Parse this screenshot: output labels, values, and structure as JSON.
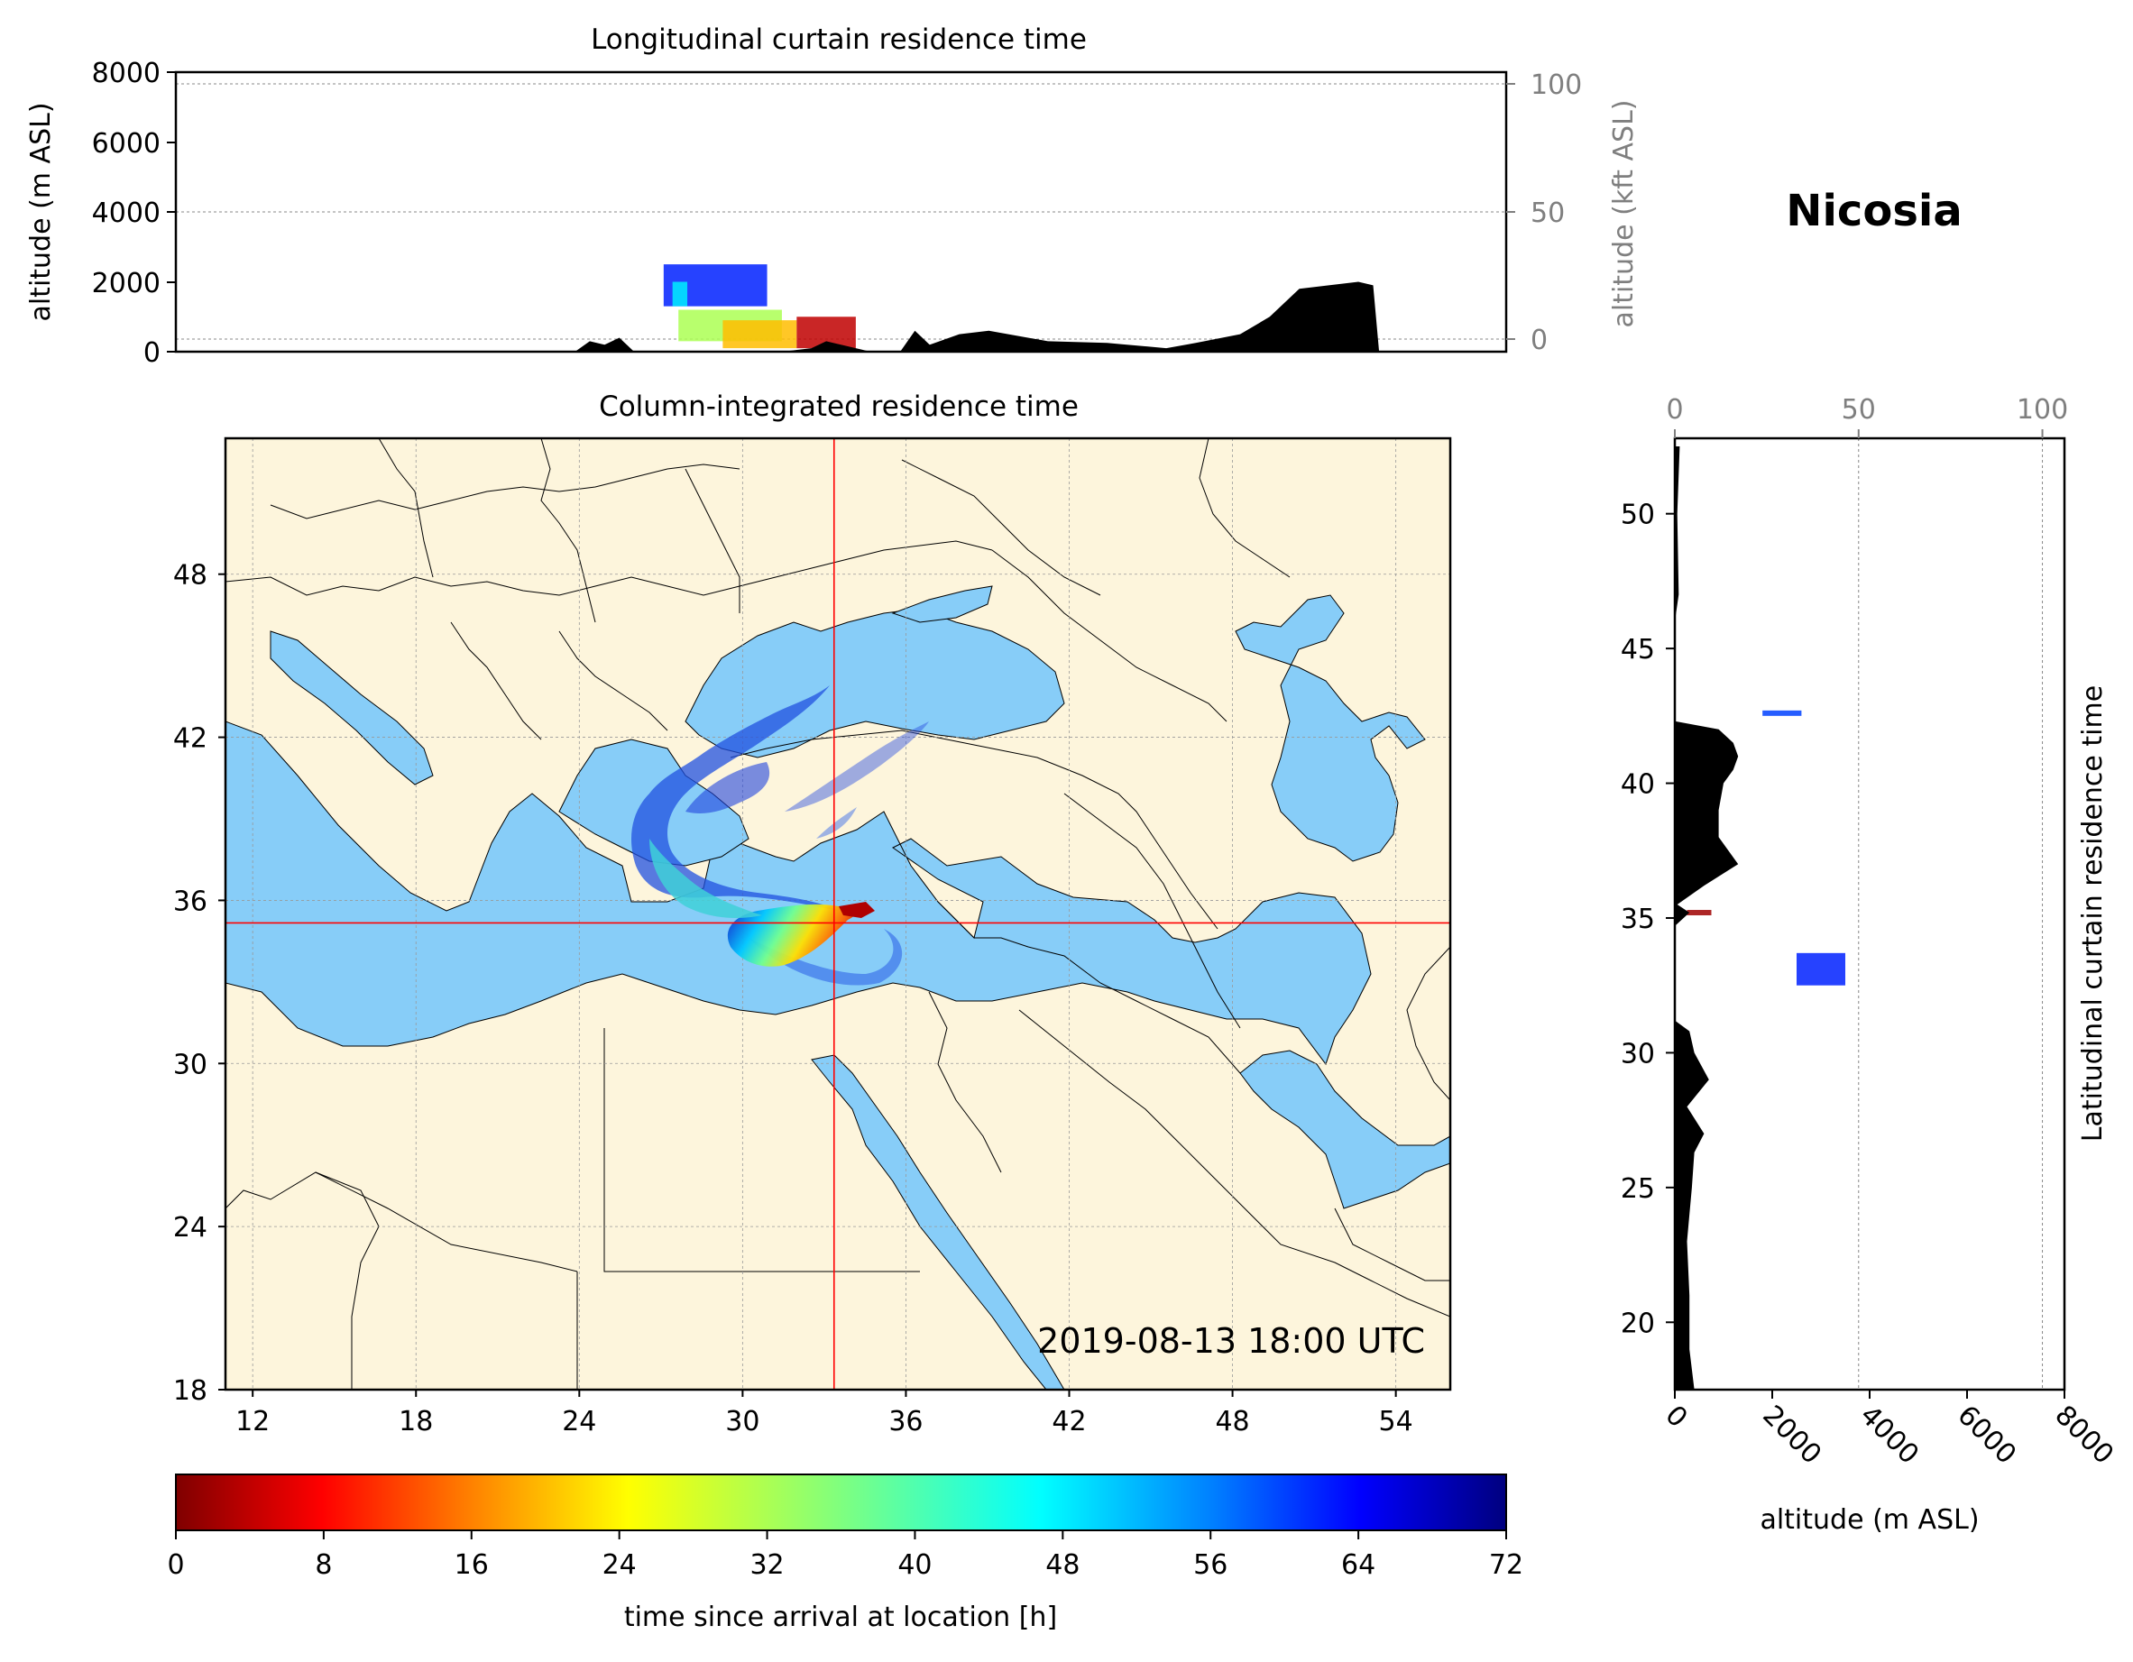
{
  "location_title": "Nicosia",
  "valid_time": "2019-08-13 18:00 UTC",
  "top_panel": {
    "title": "Longitudinal curtain residence time",
    "y_label": "altitude (m ASL)",
    "y2_label": "altitude (kft ASL)",
    "y_ticks": [
      "0",
      "2000",
      "4000",
      "6000",
      "8000"
    ],
    "y2_ticks": [
      "0",
      "50",
      "100"
    ]
  },
  "map_panel": {
    "title": "Column-integrated residence time",
    "lon_ticks": [
      "12",
      "18",
      "24",
      "30",
      "36",
      "42",
      "48",
      "54"
    ],
    "lat_ticks": [
      "18",
      "24",
      "30",
      "36",
      "42",
      "48"
    ],
    "site_lat": 35.17,
    "site_lon": 33.36,
    "colors": {
      "land": "#fdf5dc",
      "sea": "#87cdf8",
      "crosshair": "#ff0000",
      "border": "#000000"
    }
  },
  "right_panel": {
    "title": "Latitudinal curtain residence time",
    "x_label": "altitude (m ASL)",
    "x_ticks": [
      "0",
      "2000",
      "4000",
      "6000",
      "8000"
    ],
    "x2_ticks": [
      "0",
      "50",
      "100"
    ],
    "y_ticks": [
      "20",
      "25",
      "30",
      "35",
      "40",
      "45",
      "50"
    ]
  },
  "colorbar": {
    "label": "time since arrival at location [h]",
    "ticks": [
      "0",
      "8",
      "16",
      "24",
      "32",
      "40",
      "48",
      "56",
      "64",
      "72"
    ],
    "colormap": "jet_r"
  },
  "chart_data": [
    {
      "type": "heatmap",
      "title": "Longitudinal curtain residence time",
      "xlabel": "",
      "ylabel": "altitude (m ASL)",
      "ylim": [
        0,
        8000
      ],
      "y2label": "altitude (kft ASL)",
      "y2lim": [
        0,
        26.2
      ],
      "x_range_lon": [
        10.5,
        55.5
      ],
      "cells": [
        {
          "lon_start": 27.0,
          "lon_end": 30.5,
          "alt_start": 1300,
          "alt_end": 2500,
          "hours": 62
        },
        {
          "lon_start": 27.3,
          "lon_end": 27.8,
          "alt_start": 1300,
          "alt_end": 2000,
          "hours": 48
        },
        {
          "lon_start": 27.5,
          "lon_end": 31.0,
          "alt_start": 300,
          "alt_end": 1200,
          "hours": 32
        },
        {
          "lon_start": 29.0,
          "lon_end": 31.5,
          "alt_start": 100,
          "alt_end": 900,
          "hours": 20
        },
        {
          "lon_start": 31.5,
          "lon_end": 33.5,
          "alt_start": 100,
          "alt_end": 1000,
          "hours": 4
        }
      ],
      "terrain": {
        "lon": [
          24.0,
          24.5,
          25.0,
          25.5,
          26.0,
          31.0,
          32.0,
          32.5,
          33.0,
          33.5,
          34.0,
          35.0,
          35.5,
          36.0,
          37.0,
          38.0,
          40.0,
          42.0,
          44.0,
          45.0,
          46.5,
          47.5,
          48.5,
          49.5,
          50.5,
          51.0,
          51.2
        ],
        "alt_m": [
          0,
          300,
          200,
          400,
          0,
          0,
          100,
          300,
          200,
          100,
          0,
          0,
          600,
          200,
          500,
          600,
          300,
          250,
          100,
          250,
          500,
          1000,
          1800,
          1900,
          2000,
          1900,
          0
        ]
      }
    },
    {
      "type": "heatmap",
      "title": "Column-integrated residence time",
      "xlabel": "",
      "ylabel": "",
      "xlim": [
        11,
        56
      ],
      "ylim": [
        18,
        53
      ],
      "plume": [
        {
          "name": "arrival",
          "lon": 33.3,
          "lat": 35.1,
          "hours": 0
        },
        {
          "lon": 31.0,
          "lat": 34.8,
          "hours": 12
        },
        {
          "lon": 29.5,
          "lat": 34.2,
          "hours": 24
        },
        {
          "lon": 27.5,
          "lat": 35.5,
          "hours": 36
        },
        {
          "lon": 26.5,
          "lat": 37.5,
          "hours": 48
        },
        {
          "lon": 28.0,
          "lat": 40.0,
          "hours": 60
        },
        {
          "lon": 33.0,
          "lat": 42.0,
          "hours": 70
        },
        {
          "lon": 36.5,
          "lat": 41.5,
          "hours": 72
        }
      ]
    },
    {
      "type": "heatmap",
      "title": "Latitudinal curtain residence time",
      "xlabel": "altitude (m ASL)",
      "ylabel": "",
      "xlim": [
        0,
        8000
      ],
      "x2lim": [
        0,
        106
      ],
      "ylim": [
        17.5,
        52.8
      ],
      "cells": [
        {
          "alt_start": 2500,
          "alt_end": 3500,
          "lat_start": 32.5,
          "lat_end": 33.7,
          "hours": 62
        },
        {
          "alt_start": 1800,
          "alt_end": 2600,
          "lat_start": 42.5,
          "lat_end": 42.7,
          "hours": 60
        },
        {
          "alt_start": 250,
          "alt_end": 750,
          "lat_start": 35.1,
          "lat_end": 35.3,
          "hours": 2
        }
      ],
      "terrain": {
        "lat": [
          17.5,
          19,
          21,
          23,
          25,
          26.3,
          27.0,
          28,
          29,
          30,
          30.8,
          31.2,
          34.7,
          35.2,
          35.5,
          36.2,
          37.0,
          38.0,
          39.0,
          40.0,
          40.5,
          41.0,
          41.5,
          42.0,
          42.3,
          46.0,
          47.0,
          50.0,
          52.5
        ],
        "alt_m": [
          400,
          300,
          300,
          250,
          350,
          400,
          600,
          250,
          700,
          400,
          300,
          0,
          0,
          300,
          50,
          600,
          1300,
          900,
          900,
          1000,
          1200,
          1300,
          1200,
          900,
          0,
          0,
          80,
          50,
          100
        ]
      }
    }
  ]
}
